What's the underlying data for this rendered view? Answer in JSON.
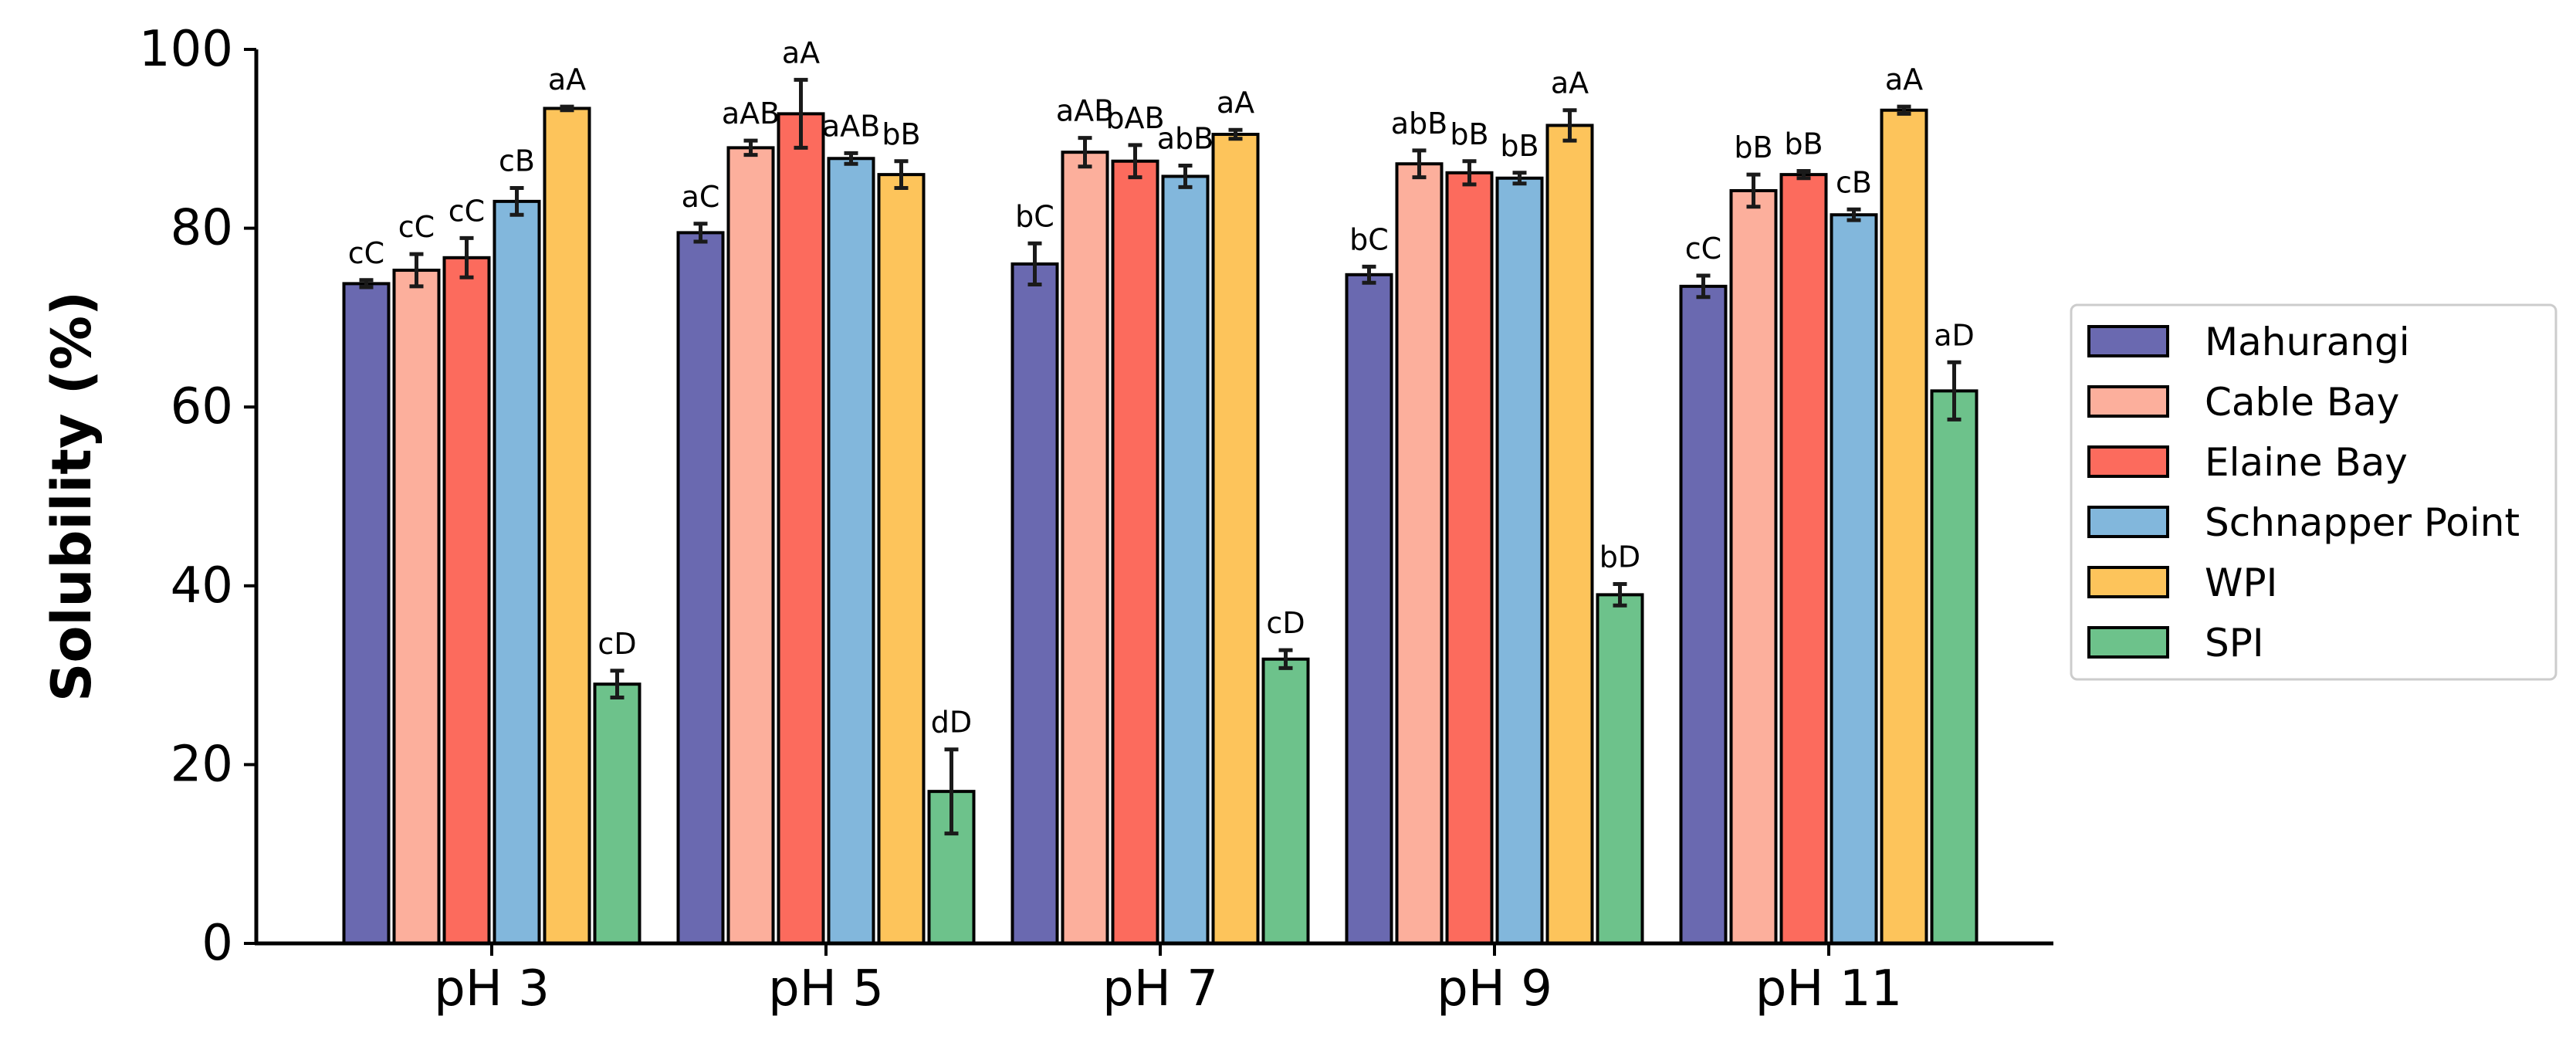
{
  "chart_data": {
    "type": "bar",
    "title": "",
    "xlabel": "",
    "ylabel": "Solubility (%)",
    "ylim": [
      0,
      100
    ],
    "yticks": [
      "0",
      "20",
      "40",
      "60",
      "80",
      "100"
    ],
    "categories": [
      "pH 3",
      "pH 5",
      "pH 7",
      "pH 9",
      "pH 11"
    ],
    "grid": false,
    "legend_position": "right",
    "series": [
      {
        "name": "Mahurangi",
        "color": "#6a69b0",
        "values": [
          73.8,
          79.5,
          76.0,
          74.8,
          73.5
        ],
        "errors": [
          0.4,
          1.0,
          2.3,
          0.9,
          1.2
        ],
        "labels": [
          "cC",
          "aC",
          "bC",
          "bC",
          "cC"
        ]
      },
      {
        "name": "Cable Bay",
        "color": "#fcaf9c",
        "values": [
          75.3,
          89.0,
          88.5,
          87.2,
          84.2
        ],
        "errors": [
          1.8,
          0.8,
          1.6,
          1.5,
          1.8
        ],
        "labels": [
          "cC",
          "aAB",
          "aAB",
          "abB",
          "bB"
        ]
      },
      {
        "name": "Elaine Bay",
        "color": "#fc6b5d",
        "values": [
          76.7,
          92.8,
          87.5,
          86.2,
          86.0
        ],
        "errors": [
          2.2,
          3.8,
          1.8,
          1.3,
          0.4
        ],
        "labels": [
          "cC",
          "aA",
          "bAB",
          "bB",
          "bB"
        ]
      },
      {
        "name": "Schnapper Point",
        "color": "#82b7dc",
        "values": [
          83.0,
          87.8,
          85.8,
          85.6,
          81.5
        ],
        "errors": [
          1.5,
          0.6,
          1.2,
          0.6,
          0.6
        ],
        "labels": [
          "cB",
          "aAB",
          "abB",
          "bB",
          "cB"
        ]
      },
      {
        "name": "WPI",
        "color": "#fdc45b",
        "values": [
          93.4,
          86.0,
          90.5,
          91.5,
          93.2
        ],
        "errors": [
          0.2,
          1.5,
          0.5,
          1.7,
          0.4
        ],
        "labels": [
          "aA",
          "bB",
          "aA",
          "aA",
          "aA"
        ]
      },
      {
        "name": "SPI",
        "color": "#6dc28b",
        "values": [
          29.0,
          17.0,
          31.8,
          39.0,
          61.8
        ],
        "errors": [
          1.5,
          4.7,
          1.0,
          1.2,
          3.2
        ],
        "labels": [
          "cD",
          "dD",
          "cD",
          "bD",
          "aD"
        ]
      }
    ]
  }
}
